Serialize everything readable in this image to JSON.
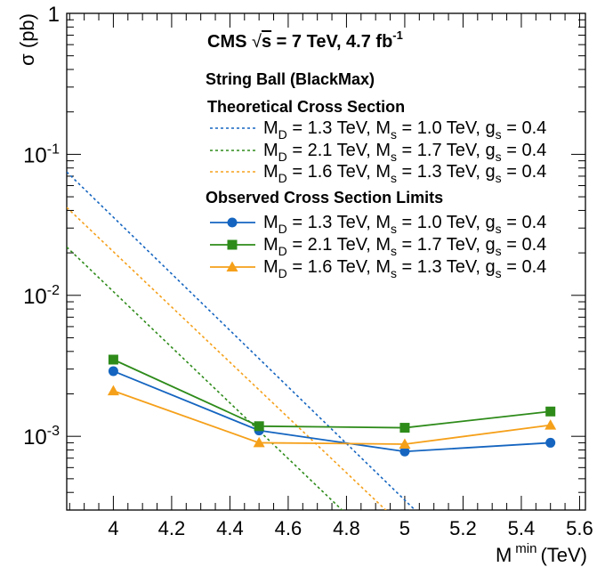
{
  "chart_data": {
    "type": "line",
    "xlabel": "M",
    "xlabel_sup": "min",
    "xlabel_unit": "(TeV)",
    "ylabel": "σ (pb)",
    "xlim": [
      3.84,
      5.62
    ],
    "ylim": [
      0.0003,
      1
    ],
    "yscale": "log",
    "x_ticks": [
      {
        "value": 4.0,
        "label": "4"
      },
      {
        "value": 4.2,
        "label": "4.2"
      },
      {
        "value": 4.4,
        "label": "4.4"
      },
      {
        "value": 4.6,
        "label": "4.6"
      },
      {
        "value": 4.8,
        "label": "4.8"
      },
      {
        "value": 5.0,
        "label": "5"
      },
      {
        "value": 5.2,
        "label": "5.2"
      },
      {
        "value": 5.4,
        "label": "5.4"
      },
      {
        "value": 5.6,
        "label": "5.6"
      }
    ],
    "y_ticks": [
      {
        "value": 1,
        "base": "1",
        "exp": ""
      },
      {
        "value": 0.1,
        "base": "10",
        "exp": "-1"
      },
      {
        "value": 0.01,
        "base": "10",
        "exp": "-2"
      },
      {
        "value": 0.001,
        "base": "10",
        "exp": "-3"
      }
    ],
    "grid": false,
    "legend_position": "top-right",
    "header": {
      "main": "CMS",
      "energy_lhs": "s",
      "energy_rhs": " = 7 TeV, 4.7 fb",
      "energy_sup": "-1"
    },
    "model_title": "String Ball (BlackMax)",
    "theory_title": "Theoretical Cross Section",
    "observed_title": "Observed Cross Section Limits",
    "theory_series": [
      {
        "MD": "1.3",
        "Ms": "1.0",
        "gs": "0.4",
        "color": "#1565c0",
        "x": [
          3.84,
          5.05
        ],
        "y": [
          0.075,
          0.00028
        ]
      },
      {
        "MD": "2.1",
        "Ms": "1.7",
        "gs": "0.4",
        "color": "#2e8b1a",
        "x": [
          3.84,
          4.8
        ],
        "y": [
          0.022,
          0.00028
        ]
      },
      {
        "MD": "1.6",
        "Ms": "1.3",
        "gs": "0.4",
        "color": "#f5a01a",
        "x": [
          3.84,
          4.95
        ],
        "y": [
          0.042,
          0.00028
        ]
      }
    ],
    "observed_series": [
      {
        "MD": "1.3",
        "Ms": "1.0",
        "gs": "0.4",
        "color": "#1565c0",
        "marker": "circle",
        "x": [
          4.0,
          4.5,
          5.0,
          5.5
        ],
        "y": [
          0.0029,
          0.0011,
          0.00078,
          0.0009
        ]
      },
      {
        "MD": "2.1",
        "Ms": "1.7",
        "gs": "0.4",
        "color": "#2e8b1a",
        "marker": "square",
        "x": [
          4.0,
          4.5,
          5.0,
          5.5
        ],
        "y": [
          0.0035,
          0.00118,
          0.00115,
          0.0015
        ]
      },
      {
        "MD": "1.6",
        "Ms": "1.3",
        "gs": "0.4",
        "color": "#f5a01a",
        "marker": "triangle",
        "x": [
          4.0,
          4.5,
          5.0,
          5.5
        ],
        "y": [
          0.0021,
          0.0009,
          0.00088,
          0.0012
        ]
      }
    ]
  }
}
